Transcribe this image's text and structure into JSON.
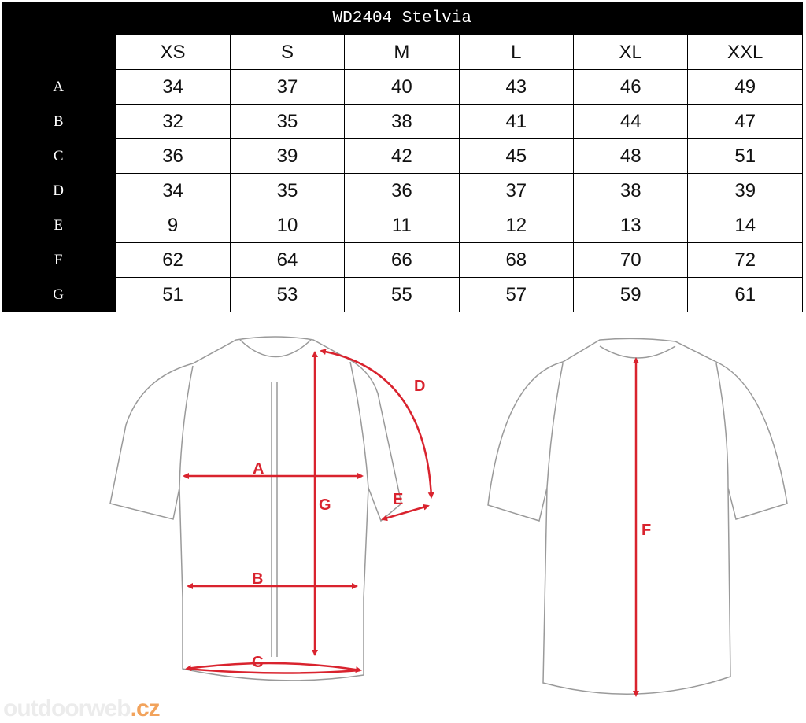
{
  "title": "WD2404 Stelvia",
  "sizes": [
    "XS",
    "S",
    "M",
    "L",
    "XL",
    "XXL"
  ],
  "rows": [
    {
      "label": "A",
      "values": [
        "34",
        "37",
        "40",
        "43",
        "46",
        "49"
      ]
    },
    {
      "label": "B",
      "values": [
        "32",
        "35",
        "38",
        "41",
        "44",
        "47"
      ]
    },
    {
      "label": "C",
      "values": [
        "36",
        "39",
        "42",
        "45",
        "48",
        "51"
      ]
    },
    {
      "label": "D",
      "values": [
        "34",
        "35",
        "36",
        "37",
        "38",
        "39"
      ]
    },
    {
      "label": "E",
      "values": [
        "9",
        "10",
        "11",
        "12",
        "13",
        "14"
      ]
    },
    {
      "label": "F",
      "values": [
        "62",
        "64",
        "66",
        "68",
        "70",
        "72"
      ]
    },
    {
      "label": "G",
      "values": [
        "51",
        "53",
        "55",
        "57",
        "59",
        "61"
      ]
    }
  ],
  "diagram_labels": {
    "A": "A",
    "B": "B",
    "C": "C",
    "D": "D",
    "E": "E",
    "F": "F",
    "G": "G"
  },
  "watermark": {
    "main": "outdoorweb",
    "suffix": ".cz"
  },
  "colors": {
    "arrow": "#d9232e",
    "outline": "#9a9a9a",
    "watermark_accent": "#f2a35c"
  }
}
